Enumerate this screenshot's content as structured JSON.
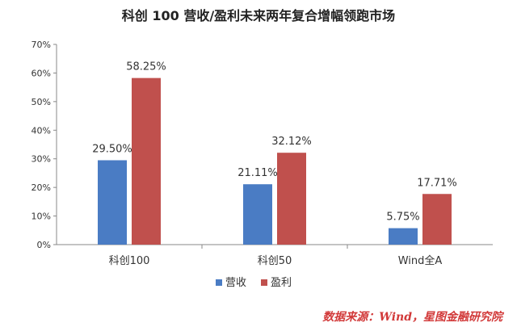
{
  "chart_data": {
    "type": "bar",
    "title": "科创 100 营收/盈利未来两年复合增幅领跑市场",
    "categories": [
      "科创100",
      "科创50",
      "Wind全A"
    ],
    "series": [
      {
        "name": "营收",
        "values": [
          29.5,
          21.11,
          5.75
        ],
        "labels": [
          "29.50%",
          "21.11%",
          "5.75%"
        ],
        "color": "#4a7cc4"
      },
      {
        "name": "盈利",
        "values": [
          58.25,
          32.12,
          17.71
        ],
        "labels": [
          "58.25%",
          "32.12%",
          "17.71%"
        ],
        "color": "#c0504d"
      }
    ],
    "yticks": [
      "0%",
      "10%",
      "20%",
      "30%",
      "40%",
      "50%",
      "60%",
      "70%"
    ],
    "ylim": [
      0,
      70
    ],
    "legend_position": "bottom",
    "grid": false
  },
  "source_note": "数据来源：Wind，星图金融研究院"
}
